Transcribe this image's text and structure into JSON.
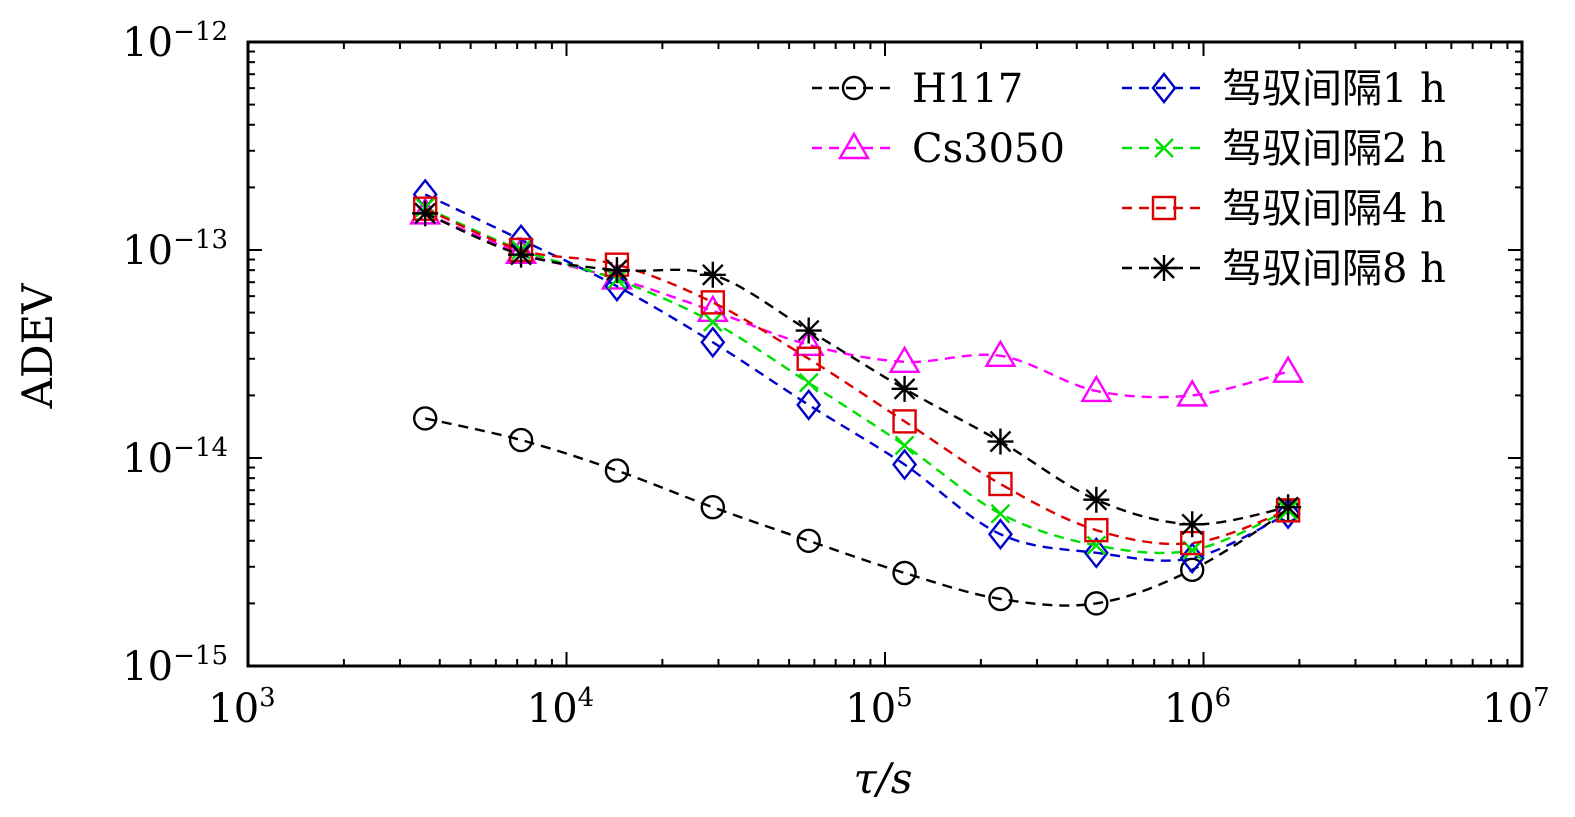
{
  "chart_data": {
    "type": "line",
    "title": "",
    "xlabel": "τ/s",
    "ylabel": "ADEV",
    "xscale": "log",
    "yscale": "log",
    "xlim": [
      1000,
      10000000
    ],
    "ylim": [
      1e-15,
      1e-12
    ],
    "grid": false,
    "legend_position": "top-right",
    "x_ticks": [
      {
        "base": "10",
        "exp": "3",
        "value": 1000
      },
      {
        "base": "10",
        "exp": "4",
        "value": 10000
      },
      {
        "base": "10",
        "exp": "5",
        "value": 100000
      },
      {
        "base": "10",
        "exp": "6",
        "value": 1000000
      },
      {
        "base": "10",
        "exp": "7",
        "value": 10000000
      }
    ],
    "y_ticks": [
      {
        "base": "10",
        "exp": "−15",
        "value": 1e-15
      },
      {
        "base": "10",
        "exp": "−14",
        "value": 1e-14
      },
      {
        "base": "10",
        "exp": "−13",
        "value": 1e-13
      },
      {
        "base": "10",
        "exp": "−12",
        "value": 1e-12
      }
    ],
    "x": [
      3600,
      7200,
      14400,
      28800,
      57600,
      115200,
      230400,
      460800,
      921600,
      1843200
    ],
    "series": [
      {
        "name": "H117",
        "color": "#000000",
        "marker": "circle",
        "values": [
          1.55e-14,
          1.22e-14,
          8.7e-15,
          5.8e-15,
          4e-15,
          2.8e-15,
          2.1e-15,
          2e-15,
          2.9e-15,
          5.6e-15
        ]
      },
      {
        "name": "Cs3050",
        "color": "#ff00ff",
        "marker": "triangle",
        "values": [
          1.5e-13,
          9.7e-14,
          7.3e-14,
          5.1e-14,
          3.5e-14,
          2.9e-14,
          3.1e-14,
          2.1e-14,
          2e-14,
          2.6e-14
        ]
      },
      {
        "name": "驾驭间隔1 h",
        "color": "#0000cc",
        "marker": "diamond",
        "values": [
          1.85e-13,
          1.12e-13,
          6.7e-14,
          3.6e-14,
          1.8e-14,
          9.3e-15,
          4.3e-15,
          3.5e-15,
          3.3e-15,
          5.4e-15
        ]
      },
      {
        "name": "驾驭间隔2 h",
        "color": "#00dd00",
        "marker": "x",
        "values": [
          1.6e-13,
          1e-13,
          7.2e-14,
          4.5e-14,
          2.3e-14,
          1.15e-14,
          5.4e-15,
          3.8e-15,
          3.6e-15,
          5.6e-15
        ]
      },
      {
        "name": "驾驭间隔4 h",
        "color": "#dd0000",
        "marker": "square",
        "values": [
          1.58e-13,
          1e-13,
          8.5e-14,
          5.6e-14,
          3e-14,
          1.5e-14,
          7.5e-15,
          4.5e-15,
          3.9e-15,
          5.6e-15
        ]
      },
      {
        "name": "驾驭间隔8 h",
        "color": "#000000",
        "marker": "star",
        "values": [
          1.5e-13,
          9.5e-14,
          8e-14,
          7.6e-14,
          4.1e-14,
          2.15e-14,
          1.2e-14,
          6.3e-15,
          4.8e-15,
          5.8e-15
        ]
      }
    ]
  }
}
